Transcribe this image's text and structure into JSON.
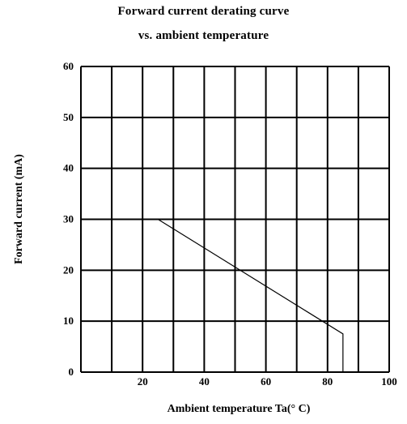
{
  "chart_data": {
    "type": "line",
    "title": "Forward current derating curve",
    "subtitle": "vs. ambient temperature",
    "xlabel": "Ambient temperature Ta(° C)",
    "ylabel": "Forward current (mA)",
    "xlim": [
      0,
      100
    ],
    "ylim": [
      0,
      60
    ],
    "x_ticks": [
      20,
      40,
      60,
      80,
      100
    ],
    "y_ticks": [
      0,
      10,
      20,
      30,
      40,
      50,
      60
    ],
    "grid": true,
    "grid_x_step": 10,
    "series": [
      {
        "x": [
          25,
          85,
          85
        ],
        "y": [
          30,
          7.5,
          0
        ],
        "color": "#000000"
      }
    ]
  }
}
